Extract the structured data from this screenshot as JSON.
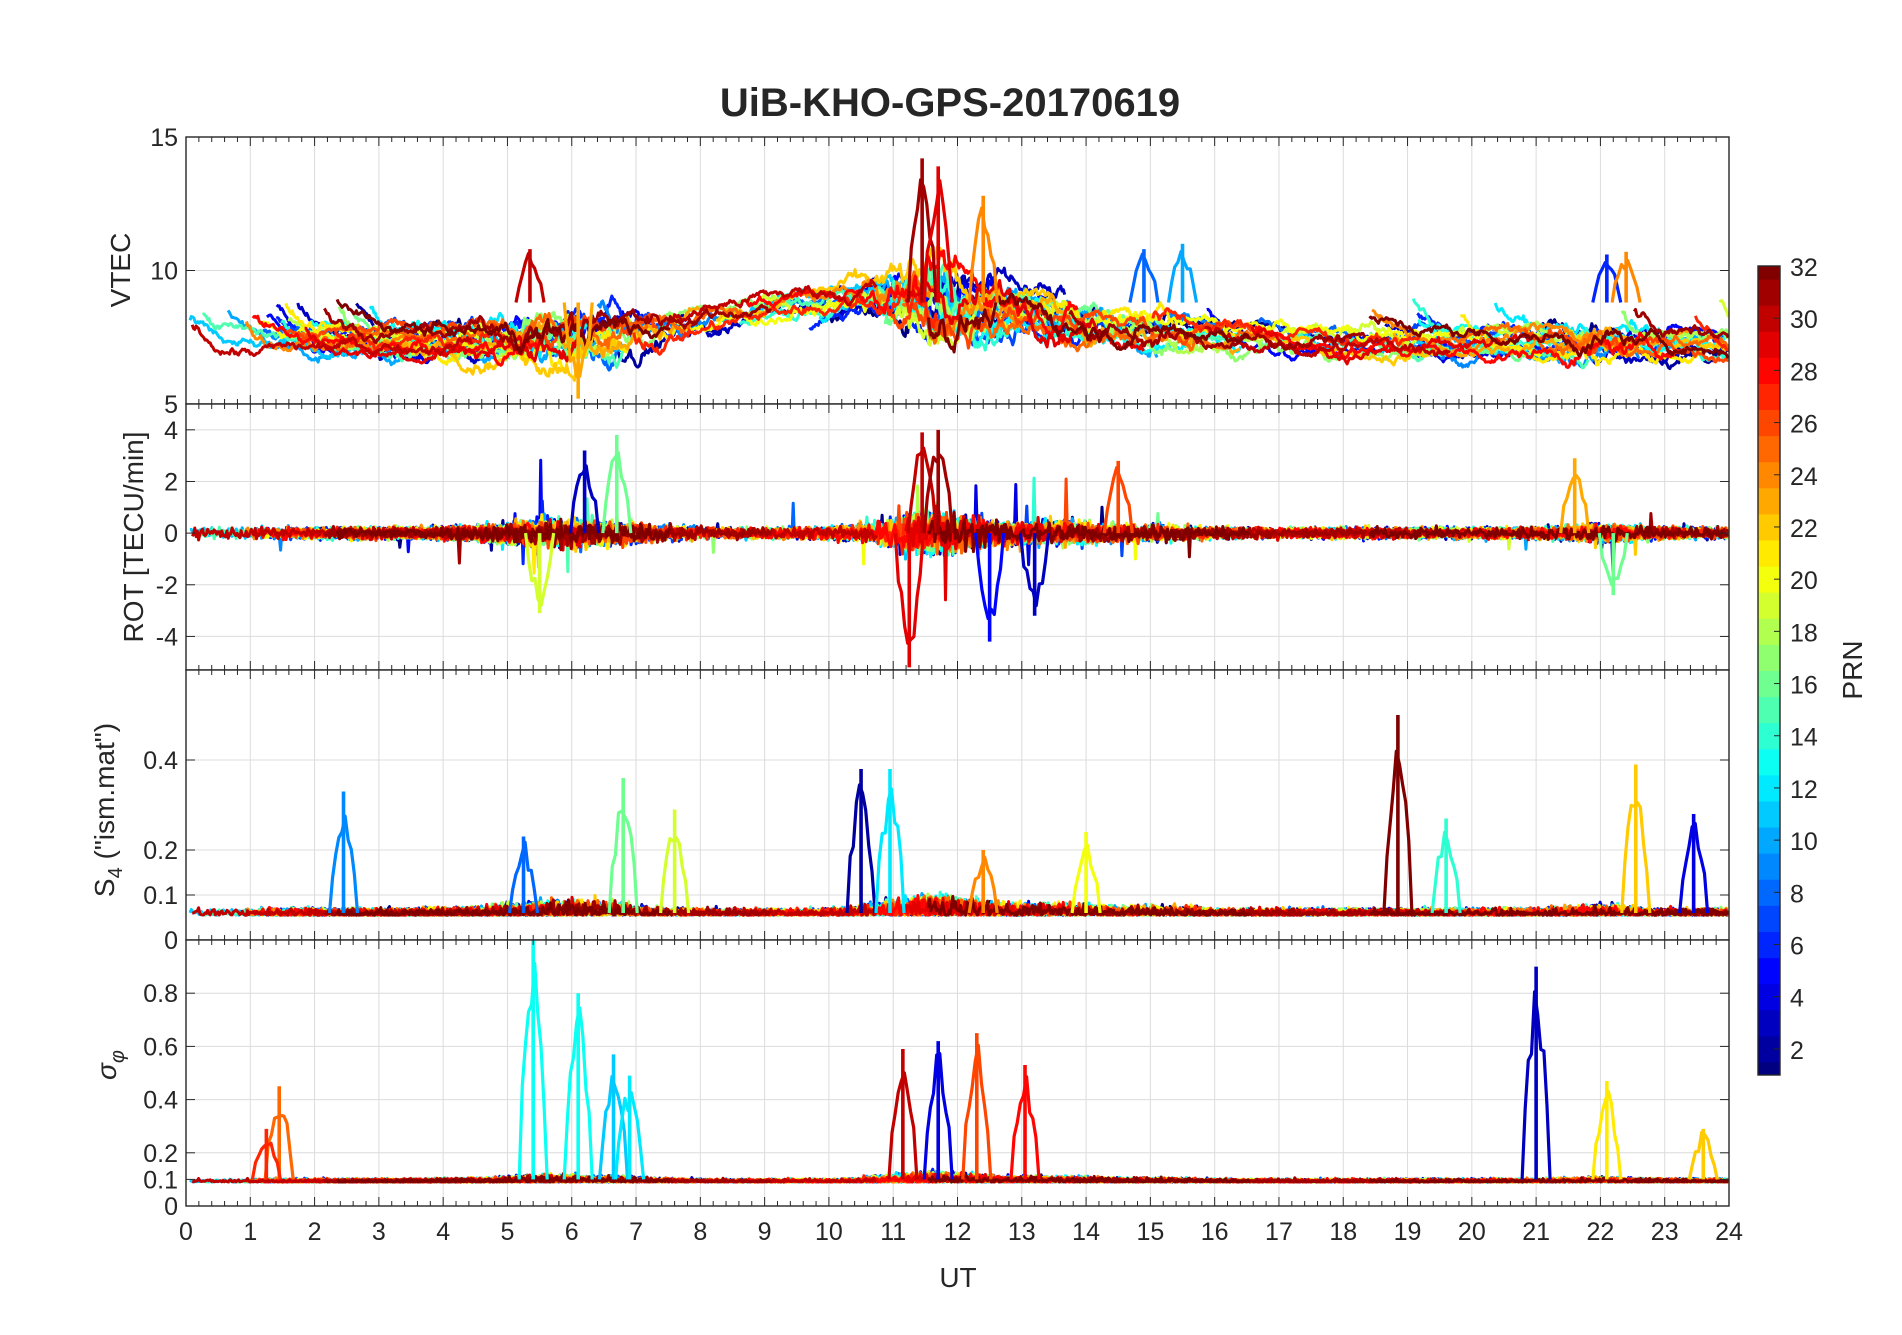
{
  "chart_data": {
    "type": "line",
    "title": "UiB-KHO-GPS-20170619",
    "xlabel": "UT",
    "xlim": [
      0,
      24
    ],
    "xticks": [
      "0",
      "1",
      "2",
      "3",
      "4",
      "5",
      "6",
      "7",
      "8",
      "9",
      "10",
      "11",
      "12",
      "13",
      "14",
      "15",
      "16",
      "17",
      "18",
      "19",
      "20",
      "21",
      "22",
      "23",
      "24"
    ],
    "panels": [
      {
        "id": "vtec",
        "ylabel": "VTEC",
        "ylim": [
          5,
          15
        ],
        "yticks": [
          {
            "v": 5,
            "t": "5"
          },
          {
            "v": 10,
            "t": "10"
          },
          {
            "v": 15,
            "t": "15"
          }
        ]
      },
      {
        "id": "rot",
        "ylabel": "ROT [TECU/min]",
        "ylim": [
          -5.3,
          5
        ],
        "yticks": [
          {
            "v": -4,
            "t": "-4"
          },
          {
            "v": -2,
            "t": "-2"
          },
          {
            "v": 0,
            "t": "0"
          },
          {
            "v": 2,
            "t": "2"
          },
          {
            "v": 4,
            "t": "4"
          }
        ]
      },
      {
        "id": "s4",
        "ylabel_main": "S",
        "ylabel_sub": "4",
        "ylabel_rest": " (\"ism.mat\")",
        "ylim": [
          0,
          0.6
        ],
        "yticks": [
          {
            "v": 0,
            "t": "0"
          },
          {
            "v": 0.1,
            "t": "0.1"
          },
          {
            "v": 0.2,
            "t": "0.2"
          },
          {
            "v": 0.4,
            "t": "0.4"
          }
        ]
      },
      {
        "id": "sigphi",
        "ylabel_main": "σ",
        "ylabel_sub": "φ",
        "ylim": [
          0,
          1
        ],
        "yticks": [
          {
            "v": 0,
            "t": "0"
          },
          {
            "v": 0.1,
            "t": "0.1"
          },
          {
            "v": 0.2,
            "t": "0.2"
          },
          {
            "v": 0.4,
            "t": "0.4"
          },
          {
            "v": 0.6,
            "t": "0.6"
          },
          {
            "v": 0.8,
            "t": "0.8"
          }
        ]
      }
    ],
    "colorbar": {
      "label": "PRN",
      "range": [
        1,
        32
      ],
      "ticks": [
        "2",
        "4",
        "6",
        "8",
        "10",
        "12",
        "14",
        "16",
        "18",
        "20",
        "22",
        "24",
        "26",
        "28",
        "30",
        "32"
      ],
      "colormap": "jet"
    },
    "series_note": "One trace per GPS satellite PRN 1–32, colored by PRN",
    "events": [
      {
        "panel": "vtec",
        "x": 11.45,
        "y": 14.2,
        "prn": 31
      },
      {
        "panel": "vtec",
        "x": 11.7,
        "y": 13.9,
        "prn": 29
      },
      {
        "panel": "vtec",
        "x": 12.4,
        "y": 12.8,
        "prn": 24
      },
      {
        "panel": "vtec",
        "x": 5.35,
        "y": 10.8,
        "prn": 30
      },
      {
        "panel": "vtec",
        "x": 6.1,
        "y": 5.2,
        "prn": 23
      },
      {
        "panel": "vtec",
        "x": 14.9,
        "y": 10.8,
        "prn": 8
      },
      {
        "panel": "vtec",
        "x": 15.5,
        "y": 11.0,
        "prn": 10
      },
      {
        "panel": "vtec",
        "x": 22.1,
        "y": 10.6,
        "prn": 6
      },
      {
        "panel": "vtec",
        "x": 22.4,
        "y": 10.7,
        "prn": 24
      },
      {
        "panel": "rot",
        "x": 11.25,
        "y": -5.2,
        "prn": 29
      },
      {
        "panel": "rot",
        "x": 11.45,
        "y": 3.9,
        "prn": 30
      },
      {
        "panel": "rot",
        "x": 11.7,
        "y": 4.0,
        "prn": 31
      },
      {
        "panel": "rot",
        "x": 6.7,
        "y": 3.8,
        "prn": 16
      },
      {
        "panel": "rot",
        "x": 6.2,
        "y": 3.2,
        "prn": 3
      },
      {
        "panel": "rot",
        "x": 12.5,
        "y": -4.2,
        "prn": 5
      },
      {
        "panel": "rot",
        "x": 13.2,
        "y": -3.2,
        "prn": 3
      },
      {
        "panel": "rot",
        "x": 5.5,
        "y": -3.1,
        "prn": 19
      },
      {
        "panel": "rot",
        "x": 21.6,
        "y": 2.9,
        "prn": 23
      },
      {
        "panel": "rot",
        "x": 22.2,
        "y": -2.4,
        "prn": 16
      },
      {
        "panel": "rot",
        "x": 14.5,
        "y": 2.8,
        "prn": 26
      },
      {
        "panel": "s4",
        "x": 18.85,
        "y": 0.5,
        "prn": 32
      },
      {
        "panel": "s4",
        "x": 10.5,
        "y": 0.38,
        "prn": 2
      },
      {
        "panel": "s4",
        "x": 10.95,
        "y": 0.38,
        "prn": 12
      },
      {
        "panel": "s4",
        "x": 6.8,
        "y": 0.36,
        "prn": 16
      },
      {
        "panel": "s4",
        "x": 22.55,
        "y": 0.39,
        "prn": 22
      },
      {
        "panel": "s4",
        "x": 2.45,
        "y": 0.33,
        "prn": 9
      },
      {
        "panel": "s4",
        "x": 7.6,
        "y": 0.29,
        "prn": 19
      },
      {
        "panel": "s4",
        "x": 23.45,
        "y": 0.28,
        "prn": 4
      },
      {
        "panel": "s4",
        "x": 19.6,
        "y": 0.27,
        "prn": 14
      },
      {
        "panel": "s4",
        "x": 14.0,
        "y": 0.24,
        "prn": 20
      },
      {
        "panel": "s4",
        "x": 5.25,
        "y": 0.23,
        "prn": 8
      },
      {
        "panel": "s4",
        "x": 12.4,
        "y": 0.2,
        "prn": 24
      },
      {
        "panel": "sigphi",
        "x": 5.4,
        "y": 1.0,
        "prn": 13
      },
      {
        "panel": "sigphi",
        "x": 21.0,
        "y": 0.9,
        "prn": 3
      },
      {
        "panel": "sigphi",
        "x": 6.1,
        "y": 0.8,
        "prn": 13
      },
      {
        "panel": "sigphi",
        "x": 11.7,
        "y": 0.62,
        "prn": 4
      },
      {
        "panel": "sigphi",
        "x": 12.3,
        "y": 0.65,
        "prn": 26
      },
      {
        "panel": "sigphi",
        "x": 11.15,
        "y": 0.59,
        "prn": 30
      },
      {
        "panel": "sigphi",
        "x": 13.05,
        "y": 0.53,
        "prn": 28
      },
      {
        "panel": "sigphi",
        "x": 6.65,
        "y": 0.57,
        "prn": 11
      },
      {
        "panel": "sigphi",
        "x": 6.9,
        "y": 0.49,
        "prn": 12
      },
      {
        "panel": "sigphi",
        "x": 22.1,
        "y": 0.47,
        "prn": 21
      },
      {
        "panel": "sigphi",
        "x": 1.45,
        "y": 0.45,
        "prn": 25
      },
      {
        "panel": "sigphi",
        "x": 23.6,
        "y": 0.29,
        "prn": 22
      },
      {
        "panel": "sigphi",
        "x": 1.25,
        "y": 0.29,
        "prn": 27
      }
    ]
  }
}
